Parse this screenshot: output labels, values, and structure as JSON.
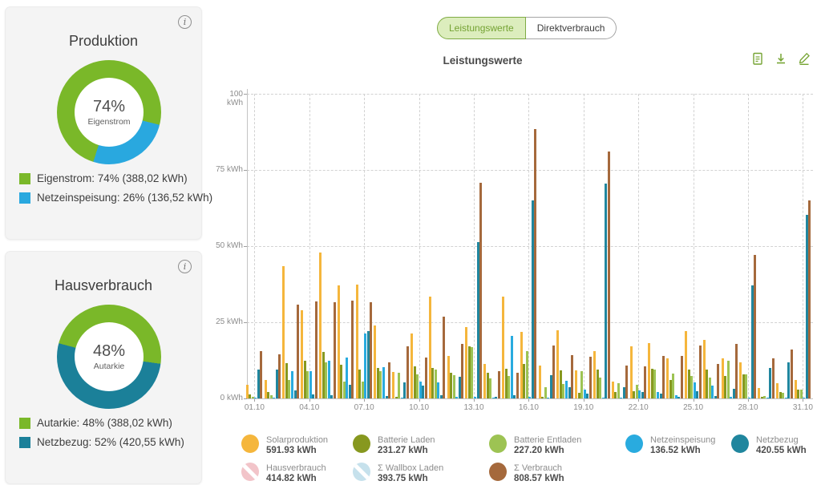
{
  "cards": [
    {
      "title": "Produktion",
      "percent": "74%",
      "percent_label": "Eigenstrom",
      "donut": {
        "from_deg": 104,
        "first_color": "#29a8df",
        "first_share": 26,
        "second_color": "#7ab829"
      },
      "legend": [
        {
          "color": "#7ab829",
          "label": "Eigenstrom: 74% (388,02 kWh)"
        },
        {
          "color": "#29a8df",
          "label": "Netzeinspeisung: 26% (136,52 kWh)"
        }
      ]
    },
    {
      "title": "Hausverbrauch",
      "percent": "48%",
      "percent_label": "Autarkie",
      "donut": {
        "from_deg": 285,
        "first_color": "#7ab829",
        "first_share": 48,
        "second_color": "#1b8099"
      },
      "legend": [
        {
          "color": "#7ab829",
          "label": "Autarkie: 48% (388,02 kWh)"
        },
        {
          "color": "#1b8099",
          "label": "Netzbezug: 52% (420,55 kWh)"
        }
      ]
    }
  ],
  "tabs": [
    {
      "label": "Leistungswerte",
      "active": true
    },
    {
      "label": "Direktverbrauch",
      "active": false
    }
  ],
  "chart_title": "Leistungswerte",
  "toolbar": {
    "accent": "#76a433",
    "icons": [
      "report-icon",
      "download-icon",
      "edit-icon"
    ]
  },
  "chart_data": {
    "type": "bar",
    "title": "Leistungswerte",
    "ylabel": "kWh",
    "ylim": [
      0,
      100
    ],
    "grid": true,
    "y_ticks": [
      {
        "value": 100,
        "label": "100\nkWh"
      },
      {
        "value": 75,
        "label": "75 kWh"
      },
      {
        "value": 50,
        "label": "50 kWh"
      },
      {
        "value": 25,
        "label": "25 kWh"
      },
      {
        "value": 0,
        "label": "0 kWh"
      }
    ],
    "categories": [
      "01.10",
      "02.10",
      "03.10",
      "04.10",
      "05.10",
      "06.10",
      "07.10",
      "08.10",
      "09.10",
      "10.10",
      "11.10",
      "12.10",
      "13.10",
      "14.10",
      "15.10",
      "16.10",
      "17.10",
      "18.10",
      "19.10",
      "20.10",
      "21.10",
      "22.10",
      "23.10",
      "24.10",
      "25.10",
      "26.10",
      "27.10",
      "28.10",
      "29.10",
      "30.10",
      "31.10"
    ],
    "x_tick_every": 3,
    "series": [
      {
        "name": "Solarproduktion",
        "total": "591.93 kWh",
        "color": "#f5b63c",
        "values": [
          4.5,
          6.0,
          43.5,
          29.0,
          48.0,
          37.0,
          37.5,
          24.0,
          8.8,
          21.3,
          33.4,
          14.0,
          23.3,
          11.2,
          33.4,
          21.9,
          10.7,
          22.4,
          9.2,
          15.4,
          5.4,
          17.0,
          18.2,
          13.2,
          22.2,
          19.3,
          13.2,
          11.9,
          3.5,
          4.9,
          6.0
        ]
      },
      {
        "name": "Batterie Laden",
        "total": "231.27 kWh",
        "color": "#87981f",
        "values": [
          1.2,
          2.0,
          11.5,
          12.5,
          15.2,
          11.0,
          9.5,
          9.9,
          0.5,
          10.4,
          9.9,
          8.4,
          17.2,
          8.4,
          9.7,
          11.4,
          0.5,
          9.2,
          1.8,
          9.6,
          2.2,
          2.5,
          9.8,
          6.1,
          9.5,
          9.5,
          7.5,
          7.9,
          0.5,
          2.0,
          2.9
        ]
      },
      {
        "name": "Batterie Entladen",
        "total": "227.20 kWh",
        "color": "#9dc353",
        "values": [
          0.5,
          1.0,
          6.1,
          8.9,
          11.9,
          5.5,
          5.5,
          9.0,
          8.4,
          7.9,
          9.6,
          7.7,
          16.9,
          6.7,
          7.5,
          15.5,
          3.8,
          4.8,
          9.0,
          6.8,
          5.1,
          4.5,
          9.5,
          8.2,
          7.3,
          6.8,
          12.3,
          7.9,
          0.9,
          1.8,
          2.9
        ]
      },
      {
        "name": "Netzeinspeisung",
        "total": "136.52 kWh",
        "color": "#29abdf",
        "values": [
          0.3,
          0.3,
          8.9,
          9.0,
          12.4,
          13.5,
          21.3,
          10.2,
          0.3,
          5.5,
          5.3,
          0.5,
          0.5,
          0.3,
          20.4,
          0.4,
          0.3,
          5.7,
          2.8,
          0.3,
          0.3,
          2.6,
          2.0,
          1.1,
          5.3,
          4.2,
          0.5,
          0.3,
          0.3,
          0.3,
          0.3
        ]
      },
      {
        "name": "Netzbezug",
        "total": "420.55 kWh",
        "color": "#20869e",
        "values": [
          9.4,
          9.6,
          2.7,
          1.4,
          1.0,
          4.5,
          22.2,
          0.9,
          5.3,
          4.2,
          1.1,
          7.0,
          51.4,
          0.5,
          1.0,
          64.9,
          7.7,
          3.7,
          1.5,
          70.6,
          3.7,
          2.2,
          1.5,
          0.5,
          2.3,
          0.7,
          3.2,
          37.1,
          10.1,
          11.9,
          60.2
        ]
      },
      {
        "name": "Σ Verbrauch",
        "total": "808.57 kWh",
        "color": "#a5693c",
        "values": [
          15.4,
          14.5,
          30.8,
          31.8,
          31.5,
          32.1,
          31.7,
          11.9,
          17.2,
          13.4,
          26.8,
          18.0,
          70.7,
          8.9,
          8.5,
          88.3,
          17.5,
          14.2,
          13.6,
          81.0,
          10.7,
          10.5,
          13.9,
          13.9,
          17.5,
          11.4,
          17.8,
          47.0,
          13.2,
          16.1,
          64.9
        ]
      }
    ],
    "disabled_series": [
      {
        "name": "Hausverbrauch",
        "total": "414.82 kWh",
        "color": "#f2c4c9"
      },
      {
        "name": "Σ Wallbox Laden",
        "total": "393.75 kWh",
        "color": "#c6e1ec"
      }
    ]
  },
  "legend_items": [
    {
      "name": "Solarproduktion",
      "value": "591.93 kWh",
      "color": "#f5b63c",
      "disabled": false,
      "row": 0,
      "col": 0
    },
    {
      "name": "Batterie Laden",
      "value": "231.27 kWh",
      "color": "#87981f",
      "disabled": false,
      "row": 0,
      "col": 1
    },
    {
      "name": "Batterie Entladen",
      "value": "227.20 kWh",
      "color": "#9dc353",
      "disabled": false,
      "row": 0,
      "col": 2
    },
    {
      "name": "Netzeinspeisung",
      "value": "136.52 kWh",
      "color": "#29abdf",
      "disabled": false,
      "row": 0,
      "col": 3
    },
    {
      "name": "Netzbezug",
      "value": "420.55 kWh",
      "color": "#20869e",
      "disabled": false,
      "row": 0,
      "col": 4
    },
    {
      "name": "Hausverbrauch",
      "value": "414.82 kWh",
      "color": "#f2c4c9",
      "disabled": true,
      "row": 1,
      "col": 0
    },
    {
      "name": "Σ Wallbox Laden",
      "value": "393.75 kWh",
      "color": "#c6e1ec",
      "disabled": true,
      "row": 1,
      "col": 1
    },
    {
      "name": "Σ Verbrauch",
      "value": "808.57 kWh",
      "color": "#a5693c",
      "disabled": false,
      "row": 1,
      "col": 2
    }
  ]
}
